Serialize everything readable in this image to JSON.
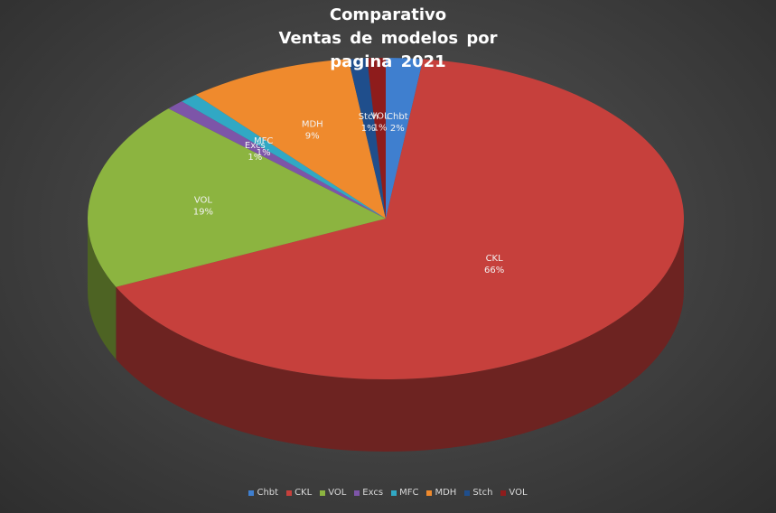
{
  "title_lines": [
    "Comparativo",
    "Ventas  de  modelos  por",
    "pagina  2021"
  ],
  "chart_data": {
    "type": "pie",
    "style": "3d",
    "title": "Comparativo Ventas de modelos por pagina 2021",
    "legend_position": "bottom",
    "slices": [
      {
        "name": "Chbt",
        "percent": 2,
        "label": "Chbt\n2%",
        "color": "#3f7fcf"
      },
      {
        "name": "CKL",
        "percent": 66,
        "label": "CKL\n66%",
        "color": "#c6403c"
      },
      {
        "name": "VOL",
        "percent": 19,
        "label": "VOL\n19%",
        "color": "#8cb440"
      },
      {
        "name": "Excs",
        "percent": 1,
        "label": "Excs\n1%",
        "color": "#7d55a8"
      },
      {
        "name": "MFC",
        "percent": 1,
        "label": "MFC\n1%",
        "color": "#31a8c4"
      },
      {
        "name": "MDH",
        "percent": 9,
        "label": "MDH\n9%",
        "color": "#ef8a2d"
      },
      {
        "name": "Stch",
        "percent": 1,
        "label": "Stch\n1%",
        "color": "#1f4e8c"
      },
      {
        "name": "VOL",
        "percent": 1,
        "label": "VOL\n1%",
        "color": "#8e1c1c"
      }
    ]
  }
}
